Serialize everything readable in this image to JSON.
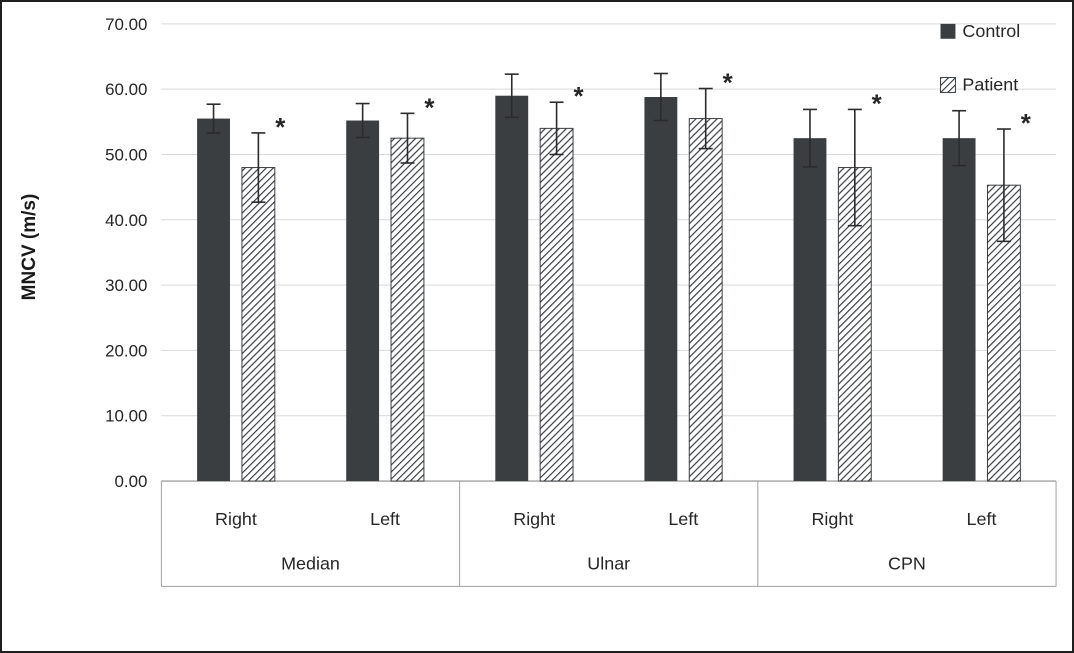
{
  "chart_data": {
    "type": "bar",
    "title": "",
    "xlabel": "",
    "ylabel": "MNCV (m/s)",
    "ylim": [
      0,
      70
    ],
    "yticks": [
      0,
      10,
      20,
      30,
      40,
      50,
      60,
      70
    ],
    "ytick_labels": [
      "0.00",
      "10.00",
      "20.00",
      "30.00",
      "40.00",
      "50.00",
      "60.00",
      "70.00"
    ],
    "grid": true,
    "legend_position": "top-right",
    "groups": [
      {
        "label": "Median",
        "categories": [
          "Right",
          "Left"
        ]
      },
      {
        "label": "Ulnar",
        "categories": [
          "Right",
          "Left"
        ]
      },
      {
        "label": "CPN",
        "categories": [
          "Right",
          "Left"
        ]
      }
    ],
    "series": [
      {
        "name": "Control",
        "fill": "solid",
        "color": "#3a3e41",
        "values": [
          55.5,
          55.2,
          59.0,
          58.8,
          52.5,
          52.5
        ],
        "errors": [
          2.2,
          2.6,
          3.3,
          3.6,
          4.4,
          4.2
        ]
      },
      {
        "name": "Patient",
        "fill": "diagonal-hatch",
        "color": "#3a3e41",
        "values": [
          48.0,
          52.5,
          54.0,
          55.5,
          48.0,
          45.3
        ],
        "errors": [
          5.3,
          3.8,
          4.0,
          4.6,
          8.9,
          8.6
        ],
        "significance": [
          "*",
          "*",
          "*",
          "*",
          "*",
          "*"
        ]
      }
    ],
    "colors": {
      "bar": "#3a3e41",
      "grid": "#d9d9d9",
      "axis": "#a0a0a0",
      "text": "#262626",
      "error": "#2b2b2b"
    }
  }
}
